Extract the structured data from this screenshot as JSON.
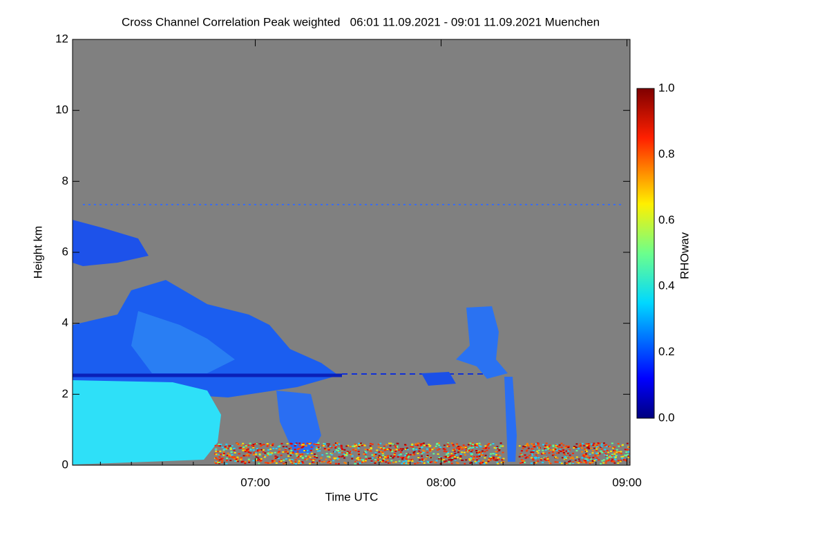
{
  "chart_data": {
    "type": "heatmap",
    "title": "Cross Channel Correlation Peak weighted   06:01 11.09.2021 - 09:01 11.09.2021 Muenchen",
    "xlabel": "Time UTC",
    "ylabel": "Height km",
    "xlim": [
      361,
      541
    ],
    "xticks": [
      {
        "value": 420,
        "label": "07:00"
      },
      {
        "value": 480,
        "label": "08:00"
      },
      {
        "value": 540,
        "label": "09:00"
      }
    ],
    "ylim": [
      0,
      12
    ],
    "yticks": [
      0,
      2,
      4,
      6,
      8,
      10,
      12
    ],
    "colorbar": {
      "label": "RHOwav",
      "lim": [
        0,
        1
      ],
      "ticks": [
        {
          "value": 0,
          "label": "0.0"
        },
        {
          "value": 0.2,
          "label": "0.2"
        },
        {
          "value": 0.4,
          "label": "0.4"
        },
        {
          "value": 0.6,
          "label": "0.6"
        },
        {
          "value": 0.8,
          "label": "0.8"
        },
        {
          "value": 1,
          "label": "1.0"
        }
      ]
    }
  }
}
